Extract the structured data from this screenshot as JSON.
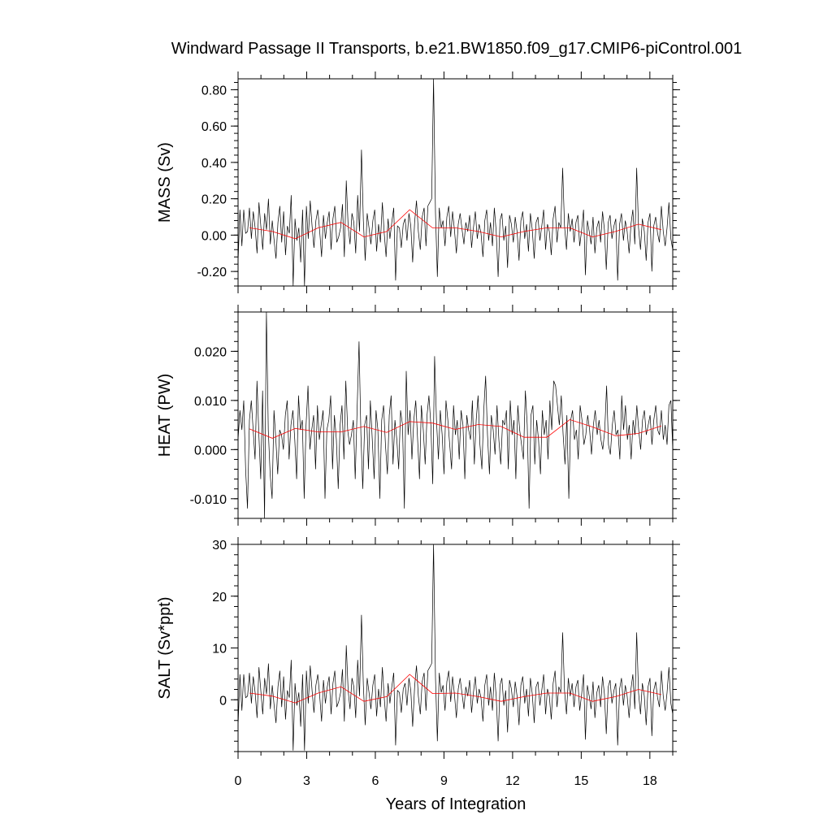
{
  "chart_data": {
    "type": "line",
    "title": "Windward Passage II Transports, b.e21.BW1850.f09_g17.CMIP6-piControl.001",
    "xlabel": "Years of Integration",
    "xlim": [
      0,
      19
    ],
    "x_ticks": [
      "0",
      "3",
      "6",
      "9",
      "12",
      "15",
      "18"
    ],
    "colors": {
      "raw": "#000000",
      "annual_mean": "#ff0000"
    },
    "panels": [
      {
        "ylabel": "MASS (Sv)",
        "ylim": [
          -0.28,
          0.86
        ],
        "y_ticks": [
          {
            "v": 0.8,
            "label": "0.80"
          },
          {
            "v": 0.6,
            "label": "0.60"
          },
          {
            "v": 0.4,
            "label": "0.40"
          },
          {
            "v": 0.2,
            "label": "0.20"
          },
          {
            "v": 0.0,
            "label": "0.00"
          },
          {
            "v": -0.2,
            "label": "-0.20"
          }
        ],
        "annual_mean": {
          "x": [
            0.5,
            1.5,
            2.5,
            3.5,
            4.5,
            5.5,
            6.5,
            7.5,
            8.5,
            9.5,
            10.5,
            11.5,
            12.5,
            13.5,
            14.5,
            15.5,
            16.5,
            17.5,
            18.5
          ],
          "y": [
            0.04,
            0.02,
            -0.02,
            0.04,
            0.07,
            -0.01,
            0.02,
            0.14,
            0.04,
            0.04,
            0.02,
            -0.01,
            0.02,
            0.04,
            0.04,
            -0.01,
            0.02,
            0.06,
            0.03
          ]
        },
        "raw": [
          -0.15,
          0.14,
          -0.06,
          0.14,
          0.01,
          0.02,
          0.15,
          -0.02,
          0.13,
          0.04,
          -0.1,
          0.18,
          0.05,
          -0.08,
          0.12,
          0.03,
          0.2,
          -0.05,
          0.08,
          -0.03,
          -0.13,
          0.07,
          0.16,
          -0.04,
          0.13,
          -0.11,
          0.05,
          0.01,
          0.22,
          -0.28,
          0.09,
          -0.03,
          0.04,
          -0.15,
          0.14,
          -0.28,
          0.16,
          -0.02,
          0.19,
          0.05,
          -0.07,
          0.08,
          0.14,
          0.02,
          -0.12,
          0.11,
          -0.02,
          0.07,
          0.13,
          -0.08,
          0.09,
          0.16,
          -0.04,
          -0.01,
          0.04,
          0.17,
          -0.12,
          0.3,
          0.05,
          -0.05,
          0.12,
          0.07,
          -0.1,
          0.22,
          0.02,
          0.47,
          0.08,
          -0.14,
          0.12,
          0.04,
          -0.05,
          0.08,
          0.14,
          -0.09,
          0.06,
          -0.04,
          0.18,
          0.01,
          -0.12,
          0.09,
          -0.02,
          0.07,
          0.15,
          -0.25,
          0.05,
          0.04,
          -0.07,
          0.06,
          0.09,
          -0.03,
          0.12,
          0.05,
          -0.15,
          0.07,
          0.19,
          0.02,
          -0.08,
          0.1,
          0.15,
          -0.06,
          0.16,
          0.18,
          0.2,
          0.86,
          0.12,
          -0.23,
          0.15,
          0.04,
          0.08,
          -0.06,
          0.1,
          0.16,
          -0.01,
          0.13,
          0.03,
          -0.1,
          0.06,
          0.12,
          0.03,
          -0.05,
          0.07,
          0.02,
          0.11,
          -0.07,
          0.04,
          0.13,
          -0.02,
          0.06,
          0.01,
          -0.12,
          0.08,
          0.14,
          -0.03,
          0.07,
          -0.06,
          0.15,
          0.02,
          -0.23,
          0.08,
          0.12,
          -0.03,
          0.05,
          -0.18,
          0.11,
          0.06,
          -0.04,
          0.1,
          0.02,
          -0.14,
          0.08,
          0.13,
          -0.02,
          0.06,
          -0.09,
          0.12,
          0.03,
          -0.13,
          0.07,
          0.1,
          -0.03,
          0.05,
          0.14,
          -0.08,
          0.06,
          0.02,
          -0.11,
          0.09,
          0.16,
          -0.04,
          0.07,
          0.04,
          0.37,
          0.05,
          -0.08,
          0.12,
          0.02,
          0.09,
          -0.04,
          0.07,
          0.11,
          -0.06,
          0.03,
          0.14,
          -0.22,
          0.08,
          0.02,
          -0.05,
          0.1,
          -0.1,
          0.04,
          0.08,
          -0.04,
          0.13,
          0.03,
          -0.19,
          0.07,
          0.11,
          -0.02,
          0.05,
          0.09,
          -0.25,
          0.06,
          0.12,
          -0.03,
          0.08,
          0.02,
          -0.1,
          0.06,
          0.14,
          -0.05,
          0.37,
          0.04,
          -0.08,
          0.09,
          0.02,
          -0.14,
          0.07,
          0.12,
          -0.2,
          0.05,
          0.1,
          0.01,
          -0.04,
          0.16,
          0.02,
          -0.06,
          0.04,
          0.18,
          -0.02,
          -0.08
        ]
      },
      {
        "ylabel": "HEAT (PW)",
        "ylim": [
          -0.014,
          0.028
        ],
        "y_ticks": [
          {
            "v": 0.02,
            "label": "0.020"
          },
          {
            "v": 0.01,
            "label": "0.010"
          },
          {
            "v": 0.0,
            "label": "0.000"
          },
          {
            "v": -0.01,
            "label": "-0.010"
          }
        ],
        "annual_mean": {
          "x": [
            0.5,
            1.5,
            2.5,
            3.5,
            4.5,
            5.5,
            6.5,
            7.5,
            8.5,
            9.5,
            10.5,
            11.5,
            12.5,
            13.5,
            14.5,
            15.5,
            16.5,
            17.5,
            18.5
          ],
          "y": [
            0.0042,
            0.0023,
            0.0043,
            0.0036,
            0.0036,
            0.0047,
            0.0035,
            0.0057,
            0.0054,
            0.0041,
            0.0051,
            0.0047,
            0.0025,
            0.0025,
            0.0061,
            0.0046,
            0.0028,
            0.0033,
            0.0048
          ]
        },
        "raw": [
          0.002,
          0.008,
          0.004,
          0.01,
          -0.004,
          -0.012,
          0.006,
          0.01,
          0.004,
          -0.002,
          0.014,
          0.003,
          -0.006,
          0.012,
          -0.014,
          0.028,
          0.004,
          -0.005,
          -0.01,
          0.008,
          0.002,
          -0.005,
          0.004,
          0.003,
          0.0,
          0.007,
          0.01,
          -0.002,
          0.005,
          0.008,
          0.002,
          -0.006,
          0.011,
          0.004,
          0.006,
          -0.01,
          0.005,
          0.013,
          0.0,
          0.004,
          0.007,
          -0.004,
          0.009,
          0.002,
          0.005,
          0.008,
          -0.01,
          0.004,
          0.006,
          0.011,
          -0.004,
          0.007,
          0.002,
          -0.008,
          0.005,
          0.009,
          -0.002,
          0.014,
          0.004,
          0.001,
          0.003,
          0.006,
          -0.006,
          0.008,
          0.022,
          0.003,
          -0.008,
          0.005,
          0.007,
          -0.004,
          0.01,
          0.002,
          -0.006,
          0.008,
          0.004,
          -0.01,
          0.006,
          0.009,
          0.001,
          -0.005,
          0.007,
          0.011,
          -0.003,
          0.006,
          0.002,
          -0.004,
          0.008,
          0.005,
          -0.012,
          0.016,
          0.003,
          0.008,
          -0.002,
          0.006,
          0.01,
          0.002,
          -0.006,
          0.009,
          0.004,
          -0.003,
          0.007,
          0.011,
          0.005,
          -0.007,
          0.019,
          0.006,
          -0.002,
          0.008,
          0.003,
          -0.005,
          0.01,
          0.006,
          0.001,
          -0.004,
          0.009,
          0.003,
          0.006,
          -0.002,
          0.008,
          0.005,
          -0.006,
          0.007,
          0.004,
          0.002,
          0.01,
          -0.003,
          0.006,
          0.011,
          0.001,
          -0.004,
          0.008,
          0.015,
          0.003,
          -0.005,
          0.007,
          0.004,
          -0.001,
          0.009,
          0.002,
          -0.003,
          0.006,
          0.005,
          0.008,
          -0.004,
          0.01,
          0.003,
          0.006,
          -0.006,
          0.009,
          0.004,
          0.001,
          -0.002,
          0.012,
          0.005,
          -0.012,
          0.007,
          0.009,
          -0.003,
          0.006,
          0.002,
          -0.005,
          0.008,
          0.003,
          0.006,
          -0.002,
          0.01,
          0.004,
          0.014,
          0.013,
          0.009,
          0.005,
          0.011,
          0.003,
          -0.003,
          0.007,
          -0.01,
          0.006,
          0.008,
          0.002,
          0.004,
          -0.002,
          0.009,
          0.006,
          0.001,
          0.003,
          0.007,
          0.004,
          -0.001,
          0.005,
          0.008,
          0.003,
          0.006,
          0.002,
          0.0,
          0.004,
          0.013,
          0.001,
          -0.001,
          0.005,
          0.008,
          0.003,
          0.004,
          -0.002,
          0.011,
          0.004,
          0.009,
          0.002,
          0.005,
          -0.002,
          0.006,
          0.003,
          0.009,
          0.004,
          0.0,
          0.006,
          0.008,
          0.003,
          0.005,
          0.007,
          0.001,
          0.006,
          0.009,
          0.004,
          0.003,
          0.008,
          0.002,
          0.005,
          0.001,
          0.009,
          0.01,
          0.0
        ]
      },
      {
        "ylabel": "SALT (Sv*ppt)",
        "ylim": [
          -10,
          30
        ],
        "y_ticks": [
          {
            "v": 30,
            "label": "30"
          },
          {
            "v": 20,
            "label": "20"
          },
          {
            "v": 10,
            "label": "10"
          },
          {
            "v": 0,
            "label": "0"
          }
        ],
        "annual_mean": {
          "x": [
            0.5,
            1.5,
            2.5,
            3.5,
            4.5,
            5.5,
            6.5,
            7.5,
            8.5,
            9.5,
            10.5,
            11.5,
            12.5,
            13.5,
            14.5,
            15.5,
            16.5,
            17.5,
            18.5
          ],
          "y": [
            1.3,
            0.7,
            -0.6,
            1.3,
            2.5,
            -0.3,
            0.6,
            4.9,
            1.2,
            1.3,
            0.6,
            -0.3,
            0.6,
            1.3,
            1.3,
            -0.3,
            0.6,
            2.0,
            1.0
          ]
        },
        "raw": [
          -5.2,
          4.9,
          -2.1,
          4.9,
          0.4,
          0.7,
          5.2,
          -0.7,
          4.5,
          1.4,
          -3.5,
          6.3,
          1.8,
          -2.8,
          4.2,
          1.1,
          7.0,
          -1.8,
          2.8,
          -1.1,
          -4.5,
          2.5,
          5.6,
          -1.4,
          4.5,
          -3.8,
          1.8,
          0.4,
          7.7,
          -9.8,
          3.2,
          -1.1,
          1.4,
          -5.2,
          4.9,
          -9.8,
          5.6,
          -0.7,
          6.6,
          1.8,
          -2.5,
          2.8,
          4.9,
          0.7,
          -4.2,
          3.8,
          -0.7,
          2.5,
          4.5,
          -2.8,
          3.2,
          5.6,
          -1.4,
          -0.4,
          1.4,
          5.9,
          -4.2,
          10.5,
          1.8,
          -1.8,
          4.2,
          2.5,
          -3.5,
          7.7,
          0.7,
          16.4,
          2.8,
          -4.9,
          4.2,
          1.4,
          -1.8,
          2.8,
          4.9,
          -3.2,
          2.1,
          -1.4,
          6.3,
          0.4,
          -4.2,
          3.2,
          -0.7,
          2.5,
          5.2,
          -8.8,
          1.8,
          1.4,
          -2.5,
          2.1,
          3.2,
          -1.1,
          4.2,
          1.8,
          -5.2,
          2.5,
          6.6,
          0.7,
          -2.8,
          3.5,
          5.2,
          -2.1,
          5.6,
          6.3,
          7.0,
          30.0,
          4.2,
          -8.0,
          5.2,
          1.4,
          2.8,
          -2.1,
          3.5,
          5.6,
          -0.4,
          4.5,
          1.1,
          -3.5,
          2.1,
          4.2,
          1.1,
          -1.8,
          2.5,
          0.7,
          3.8,
          -2.5,
          1.4,
          4.5,
          -0.7,
          2.1,
          0.4,
          -4.2,
          2.8,
          4.9,
          -1.1,
          2.5,
          -2.1,
          5.2,
          0.7,
          -8.0,
          2.8,
          4.2,
          -1.1,
          1.8,
          -6.3,
          3.8,
          2.1,
          -1.4,
          3.5,
          0.7,
          -4.9,
          2.8,
          4.5,
          -0.7,
          2.1,
          -3.2,
          4.2,
          1.1,
          -4.5,
          2.5,
          3.5,
          -1.1,
          1.8,
          4.9,
          -2.8,
          2.1,
          0.7,
          -3.8,
          3.2,
          5.6,
          -1.4,
          2.5,
          1.4,
          13.0,
          1.8,
          -2.8,
          4.2,
          0.7,
          3.2,
          -1.4,
          2.5,
          3.8,
          -2.1,
          1.1,
          4.9,
          -7.7,
          2.8,
          0.7,
          -1.8,
          3.5,
          -3.5,
          1.4,
          2.8,
          -1.4,
          4.5,
          1.1,
          -6.6,
          2.5,
          3.8,
          -0.7,
          1.8,
          3.2,
          -8.8,
          2.1,
          4.2,
          -1.1,
          2.8,
          0.7,
          -3.5,
          2.1,
          4.9,
          -1.8,
          13.0,
          1.4,
          -2.8,
          3.2,
          0.7,
          -4.9,
          2.5,
          4.2,
          -7.0,
          1.8,
          3.5,
          0.4,
          -1.4,
          5.6,
          0.7,
          -2.1,
          1.4,
          6.3,
          -0.7,
          -2.8
        ]
      }
    ]
  }
}
